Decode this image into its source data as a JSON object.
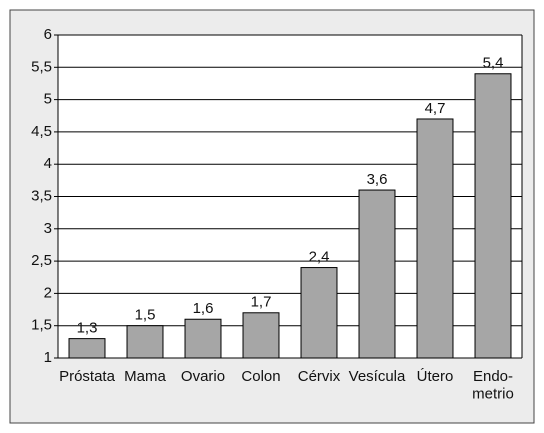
{
  "chart_data": {
    "type": "bar",
    "categories": [
      "Próstata",
      "Mama",
      "Ovario",
      "Colon",
      "Cérvix",
      "Vesícula",
      "Útero",
      "Endo-\nmetrio"
    ],
    "values": [
      1.3,
      1.5,
      1.6,
      1.7,
      2.4,
      3.6,
      4.7,
      5.4
    ],
    "value_labels": [
      "1,3",
      "1,5",
      "1,6",
      "1,7",
      "2,4",
      "3,6",
      "4,7",
      "5,4"
    ],
    "color": "#a6a6a6",
    "ylim": [
      1,
      6
    ],
    "yticks": [
      1,
      {
        "value": 1.5,
        "label": "1,5"
      },
      2,
      {
        "value": 2.5,
        "label": "2,5"
      },
      3,
      {
        "value": 3.5,
        "label": "3,5"
      },
      4,
      {
        "value": 4.5,
        "label": "4,5"
      },
      5,
      {
        "value": 5.5,
        "label": "5,5"
      },
      6
    ],
    "grid": true
  }
}
